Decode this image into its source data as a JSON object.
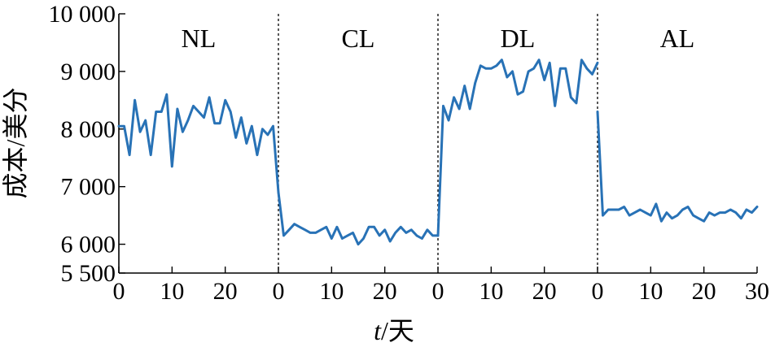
{
  "chart_data": {
    "type": "line",
    "title": "",
    "xlabel": "t/天",
    "xlabel_italic_part": "t",
    "xlabel_rest": "/天",
    "ylabel": "成本/美分",
    "ylim": [
      5500,
      10000
    ],
    "yticks": [
      5500,
      6000,
      7000,
      8000,
      9000,
      10000
    ],
    "ytick_labels": [
      "5 500",
      "6 000",
      "7 000",
      "8 000",
      "9 000",
      "10 000"
    ],
    "xlim_per_panel": [
      0,
      30
    ],
    "xticks": [
      0,
      10,
      20,
      30
    ],
    "xtick_labels": [
      "0",
      "10",
      "20",
      "0",
      "10",
      "20",
      "0",
      "10",
      "20",
      "0",
      "10",
      "20",
      "30"
    ],
    "grid": false,
    "color": "#2872b6",
    "panels": [
      {
        "label": "NL",
        "x": [
          0,
          1,
          2,
          3,
          4,
          5,
          6,
          7,
          8,
          9,
          10,
          11,
          12,
          13,
          14,
          15,
          16,
          17,
          18,
          19,
          20,
          21,
          22,
          23,
          24,
          25,
          26,
          27,
          28,
          29,
          30
        ],
        "values": [
          8050,
          8050,
          7550,
          8500,
          7950,
          8150,
          7550,
          8300,
          8300,
          8600,
          7350,
          8350,
          7950,
          8150,
          8400,
          8300,
          8200,
          8550,
          8100,
          8100,
          8500,
          8300,
          7850,
          8200,
          7750,
          8050,
          7550,
          8000,
          7900,
          8050,
          6900
        ]
      },
      {
        "label": "CL",
        "x": [
          0,
          1,
          2,
          3,
          4,
          5,
          6,
          7,
          8,
          9,
          10,
          11,
          12,
          13,
          14,
          15,
          16,
          17,
          18,
          19,
          20,
          21,
          22,
          23,
          24,
          25,
          26,
          27,
          28,
          29,
          30
        ],
        "values": [
          6900,
          6150,
          6250,
          6350,
          6300,
          6250,
          6200,
          6200,
          6250,
          6300,
          6100,
          6300,
          6100,
          6150,
          6200,
          6000,
          6100,
          6300,
          6300,
          6150,
          6250,
          6050,
          6200,
          6300,
          6200,
          6250,
          6150,
          6100,
          6250,
          6150,
          6150
        ]
      },
      {
        "label": "DL",
        "x": [
          0,
          1,
          2,
          3,
          4,
          5,
          6,
          7,
          8,
          9,
          10,
          11,
          12,
          13,
          14,
          15,
          16,
          17,
          18,
          19,
          20,
          21,
          22,
          23,
          24,
          25,
          26,
          27,
          28,
          29,
          30
        ],
        "values": [
          6150,
          8400,
          8150,
          8550,
          8350,
          8750,
          8350,
          8800,
          9100,
          9050,
          9050,
          9100,
          9200,
          8900,
          9000,
          8600,
          8650,
          9000,
          9050,
          9200,
          8850,
          9150,
          8400,
          9050,
          9050,
          8550,
          8450,
          9200,
          9050,
          8950,
          9150
        ]
      },
      {
        "label": "AL",
        "x": [
          0,
          1,
          2,
          3,
          4,
          5,
          6,
          7,
          8,
          9,
          10,
          11,
          12,
          13,
          14,
          15,
          16,
          17,
          18,
          19,
          20,
          21,
          22,
          23,
          24,
          25,
          26,
          27,
          28,
          29,
          30
        ],
        "values": [
          8300,
          6500,
          6600,
          6600,
          6600,
          6650,
          6500,
          6550,
          6600,
          6550,
          6500,
          6700,
          6400,
          6550,
          6450,
          6500,
          6600,
          6650,
          6500,
          6450,
          6400,
          6550,
          6500,
          6550,
          6550,
          6600,
          6550,
          6450,
          6600,
          6550,
          6650
        ]
      }
    ]
  }
}
